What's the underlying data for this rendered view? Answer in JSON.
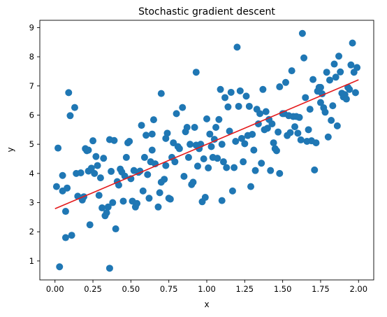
{
  "chart_data": {
    "type": "scatter",
    "title": "Stochastic gradient descent",
    "xlabel": "x",
    "ylabel": "y",
    "xlim": [
      -0.1,
      2.1
    ],
    "ylim": [
      0.35,
      9.25
    ],
    "xticks": [
      0.0,
      0.25,
      0.5,
      0.75,
      1.0,
      1.25,
      1.5,
      1.75,
      2.0
    ],
    "xtick_labels": [
      "0.00",
      "0.25",
      "0.50",
      "0.75",
      "1.00",
      "1.25",
      "1.50",
      "1.75",
      "2.00"
    ],
    "yticks": [
      1,
      2,
      3,
      4,
      5,
      6,
      7,
      8,
      9
    ],
    "ytick_labels": [
      "1",
      "2",
      "3",
      "4",
      "5",
      "6",
      "7",
      "8",
      "9"
    ],
    "grid": false,
    "colors": {
      "points": "#1f77b4",
      "line": "#e41a1c"
    },
    "series": [
      {
        "type": "scatter",
        "points": [
          [
            0.01,
            3.55
          ],
          [
            0.02,
            4.87
          ],
          [
            0.03,
            0.8
          ],
          [
            0.05,
            3.93
          ],
          [
            0.05,
            3.4
          ],
          [
            0.07,
            1.8
          ],
          [
            0.07,
            2.7
          ],
          [
            0.08,
            3.5
          ],
          [
            0.09,
            6.77
          ],
          [
            0.1,
            5.98
          ],
          [
            0.11,
            1.88
          ],
          [
            0.13,
            6.26
          ],
          [
            0.14,
            4.0
          ],
          [
            0.15,
            3.22
          ],
          [
            0.17,
            4.02
          ],
          [
            0.18,
            3.09
          ],
          [
            0.19,
            3.2
          ],
          [
            0.2,
            4.85
          ],
          [
            0.21,
            4.78
          ],
          [
            0.22,
            4.8
          ],
          [
            0.22,
            4.08
          ],
          [
            0.23,
            2.24
          ],
          [
            0.24,
            4.18
          ],
          [
            0.25,
            5.12
          ],
          [
            0.26,
            4.0
          ],
          [
            0.27,
            4.58
          ],
          [
            0.28,
            4.27
          ],
          [
            0.29,
            3.25
          ],
          [
            0.3,
            3.85
          ],
          [
            0.31,
            2.82
          ],
          [
            0.32,
            4.52
          ],
          [
            0.33,
            2.55
          ],
          [
            0.34,
            2.65
          ],
          [
            0.35,
            2.85
          ],
          [
            0.36,
            0.75
          ],
          [
            0.36,
            5.16
          ],
          [
            0.37,
            4.07
          ],
          [
            0.38,
            3.0
          ],
          [
            0.39,
            5.13
          ],
          [
            0.4,
            2.1
          ],
          [
            0.41,
            3.72
          ],
          [
            0.42,
            3.6
          ],
          [
            0.43,
            4.15
          ],
          [
            0.44,
            4.05
          ],
          [
            0.45,
            3.05
          ],
          [
            0.46,
            3.91
          ],
          [
            0.47,
            4.55
          ],
          [
            0.48,
            5.05
          ],
          [
            0.49,
            5.1
          ],
          [
            0.5,
            3.82
          ],
          [
            0.51,
            3.05
          ],
          [
            0.52,
            4.1
          ],
          [
            0.53,
            2.85
          ],
          [
            0.54,
            2.97
          ],
          [
            0.55,
            4.04
          ],
          [
            0.56,
            4.08
          ],
          [
            0.57,
            5.65
          ],
          [
            0.58,
            3.4
          ],
          [
            0.59,
            4.55
          ],
          [
            0.6,
            5.31
          ],
          [
            0.61,
            3.96
          ],
          [
            0.62,
            3.15
          ],
          [
            0.63,
            4.4
          ],
          [
            0.64,
            4.8
          ],
          [
            0.64,
            5.35
          ],
          [
            0.65,
            5.84
          ],
          [
            0.66,
            4.33
          ],
          [
            0.68,
            2.85
          ],
          [
            0.69,
            3.34
          ],
          [
            0.7,
            3.7
          ],
          [
            0.7,
            6.74
          ],
          [
            0.72,
            3.8
          ],
          [
            0.73,
            4.27
          ],
          [
            0.73,
            5.2
          ],
          [
            0.74,
            5.38
          ],
          [
            0.75,
            3.15
          ],
          [
            0.76,
            3.12
          ],
          [
            0.77,
            4.55
          ],
          [
            0.78,
            5.05
          ],
          [
            0.79,
            4.4
          ],
          [
            0.8,
            6.05
          ],
          [
            0.81,
            4.92
          ],
          [
            0.82,
            4.85
          ],
          [
            0.84,
            6.26
          ],
          [
            0.85,
            3.9
          ],
          [
            0.86,
            5.43
          ],
          [
            0.87,
            5.58
          ],
          [
            0.88,
            4.55
          ],
          [
            0.89,
            5.0
          ],
          [
            0.9,
            3.62
          ],
          [
            0.91,
            3.7
          ],
          [
            0.92,
            5.58
          ],
          [
            0.93,
            4.97
          ],
          [
            0.93,
            7.47
          ],
          [
            0.94,
            4.25
          ],
          [
            0.95,
            4.85
          ],
          [
            0.96,
            5.0
          ],
          [
            0.97,
            3.03
          ],
          [
            0.98,
            4.5
          ],
          [
            0.99,
            3.18
          ],
          [
            1.0,
            5.87
          ],
          [
            1.01,
            4.19
          ],
          [
            1.02,
            5.35
          ],
          [
            1.03,
            4.92
          ],
          [
            1.04,
            4.55
          ],
          [
            1.05,
            5.17
          ],
          [
            1.06,
            5.58
          ],
          [
            1.07,
            4.52
          ],
          [
            1.08,
            5.85
          ],
          [
            1.09,
            6.88
          ],
          [
            1.1,
            3.07
          ],
          [
            1.1,
            5.0
          ],
          [
            1.11,
            4.4
          ],
          [
            1.12,
            6.6
          ],
          [
            1.13,
            4.2
          ],
          [
            1.14,
            6.28
          ],
          [
            1.15,
            5.45
          ],
          [
            1.16,
            6.78
          ],
          [
            1.17,
            3.4
          ],
          [
            1.18,
            4.2
          ],
          [
            1.19,
            5.1
          ],
          [
            1.2,
            8.33
          ],
          [
            1.21,
            6.3
          ],
          [
            1.22,
            6.83
          ],
          [
            1.23,
            5.2
          ],
          [
            1.24,
            4.4
          ],
          [
            1.25,
            5.02
          ],
          [
            1.26,
            6.65
          ],
          [
            1.27,
            5.3
          ],
          [
            1.28,
            6.3
          ],
          [
            1.29,
            3.55
          ],
          [
            1.3,
            5.34
          ],
          [
            1.31,
            4.8
          ],
          [
            1.32,
            4.1
          ],
          [
            1.33,
            6.2
          ],
          [
            1.34,
            5.7
          ],
          [
            1.35,
            6.05
          ],
          [
            1.36,
            4.35
          ],
          [
            1.37,
            6.88
          ],
          [
            1.38,
            5.5
          ],
          [
            1.39,
            6.12
          ],
          [
            1.4,
            5.55
          ],
          [
            1.41,
            5.85
          ],
          [
            1.42,
            4.1
          ],
          [
            1.43,
            5.7
          ],
          [
            1.44,
            5.05
          ],
          [
            1.45,
            4.85
          ],
          [
            1.46,
            4.78
          ],
          [
            1.47,
            5.42
          ],
          [
            1.48,
            4.0
          ],
          [
            1.48,
            6.97
          ],
          [
            1.5,
            6.05
          ],
          [
            1.51,
            6.05
          ],
          [
            1.52,
            7.12
          ],
          [
            1.53,
            5.3
          ],
          [
            1.54,
            5.98
          ],
          [
            1.55,
            5.4
          ],
          [
            1.56,
            7.52
          ],
          [
            1.57,
            5.95
          ],
          [
            1.58,
            5.6
          ],
          [
            1.59,
            5.95
          ],
          [
            1.6,
            5.38
          ],
          [
            1.61,
            5.92
          ],
          [
            1.62,
            5.15
          ],
          [
            1.63,
            8.8
          ],
          [
            1.64,
            7.96
          ],
          [
            1.65,
            6.6
          ],
          [
            1.66,
            5.1
          ],
          [
            1.67,
            5.5
          ],
          [
            1.68,
            6.2
          ],
          [
            1.69,
            5.12
          ],
          [
            1.7,
            7.22
          ],
          [
            1.71,
            4.12
          ],
          [
            1.72,
            5.05
          ],
          [
            1.73,
            6.82
          ],
          [
            1.74,
            6.95
          ],
          [
            1.75,
            6.95
          ],
          [
            1.75,
            6.43
          ],
          [
            1.76,
            6.73
          ],
          [
            1.77,
            6.25
          ],
          [
            1.78,
            6.1
          ],
          [
            1.79,
            7.47
          ],
          [
            1.8,
            5.25
          ],
          [
            1.81,
            7.2
          ],
          [
            1.82,
            5.82
          ],
          [
            1.83,
            6.32
          ],
          [
            1.84,
            7.75
          ],
          [
            1.85,
            7.3
          ],
          [
            1.86,
            5.63
          ],
          [
            1.87,
            8.02
          ],
          [
            1.88,
            7.48
          ],
          [
            1.89,
            6.75
          ],
          [
            1.9,
            6.62
          ],
          [
            1.91,
            6.7
          ],
          [
            1.92,
            6.55
          ],
          [
            1.93,
            6.95
          ],
          [
            1.94,
            6.88
          ],
          [
            1.95,
            7.72
          ],
          [
            1.96,
            8.47
          ],
          [
            1.97,
            7.47
          ],
          [
            1.98,
            6.77
          ],
          [
            1.99,
            7.63
          ]
        ]
      },
      {
        "type": "line",
        "points": [
          [
            0.0,
            2.79
          ],
          [
            2.0,
            7.21
          ]
        ]
      }
    ]
  }
}
